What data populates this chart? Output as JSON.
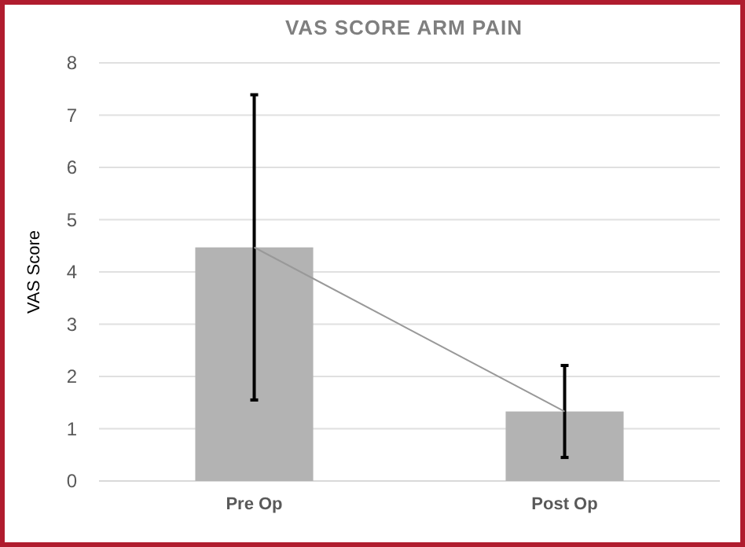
{
  "chart_data": {
    "type": "bar",
    "title": "VAS SCORE ARM PAIN",
    "ylabel": "VAS Score",
    "categories": [
      "Pre Op",
      "Post Op"
    ],
    "series": [
      {
        "color": "#b3b3b3",
        "values": [
          4.47,
          1.33
        ],
        "errors": [
          2.92,
          0.88
        ]
      },
      {
        "type": "line",
        "color": "#999999",
        "values": [
          4.47,
          1.33
        ],
        "marker": "none"
      }
    ],
    "ylim": [
      0,
      8
    ],
    "yticks": [
      0,
      1,
      2,
      3,
      4,
      5,
      6,
      7,
      8
    ],
    "grid": "y"
  }
}
